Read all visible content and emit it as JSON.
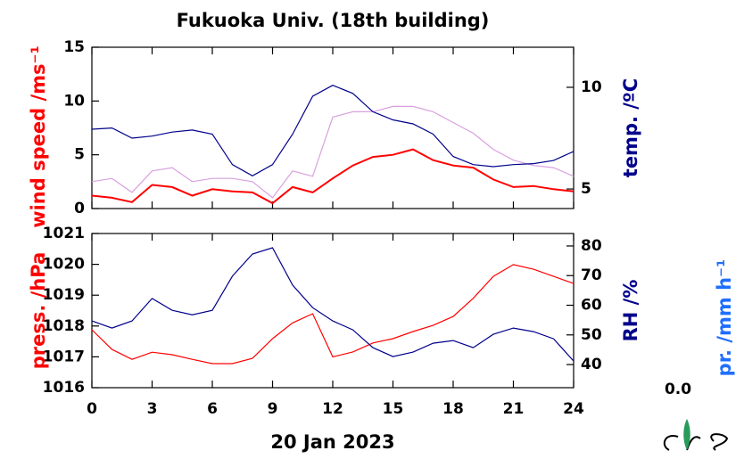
{
  "chart_data": [
    {
      "type": "line",
      "title": "Fukuoka Univ. (18th building)",
      "ylabel": "wind speed /ms⁻¹",
      "y2label": "temp. /ºC",
      "x": [
        0,
        1,
        2,
        3,
        4,
        5,
        6,
        7,
        8,
        9,
        10,
        11,
        12,
        13,
        14,
        15,
        16,
        17,
        18,
        19,
        20,
        21,
        22,
        23,
        24
      ],
      "xlim": [
        0,
        24
      ],
      "xticks": [
        0,
        3,
        6,
        9,
        12,
        15,
        18,
        21,
        24
      ],
      "ylim": [
        0,
        15
      ],
      "yticks": [
        0,
        5,
        10,
        15
      ],
      "y2lim": [
        4.04,
        11.97
      ],
      "y2ticks": [
        5,
        10
      ],
      "label_colors": {
        "y": "#ff0000",
        "y2": "#00008b"
      },
      "series": [
        {
          "color": "#d9a0e0",
          "values": [
            2.5,
            2.8,
            1.5,
            3.5,
            3.8,
            2.5,
            2.8,
            2.8,
            2.5,
            1.0,
            3.5,
            3.0,
            8.5,
            9.0,
            9.0,
            9.5,
            9.5,
            9.0,
            8.0,
            7.0,
            5.5,
            4.5,
            4.0,
            3.8,
            3.0
          ]
        },
        {
          "color": "#ff0000",
          "values": [
            1.2,
            1.0,
            0.6,
            2.2,
            2.0,
            1.2,
            1.8,
            1.6,
            1.5,
            0.5,
            2.0,
            1.5,
            2.8,
            4.0,
            4.8,
            5.0,
            5.5,
            4.5,
            4.0,
            3.8,
            2.7,
            2.0,
            2.1,
            1.8,
            1.6
          ]
        },
        {
          "color": "#00008b",
          "axis": "y2",
          "values": [
            7.94,
            8.0,
            7.5,
            7.6,
            7.8,
            7.9,
            7.7,
            6.2,
            5.65,
            6.2,
            7.7,
            9.56,
            10.1,
            9.7,
            8.8,
            8.4,
            8.2,
            7.7,
            6.6,
            6.2,
            6.1,
            6.2,
            6.25,
            6.4,
            6.85
          ]
        }
      ]
    },
    {
      "type": "line",
      "xlabel": "20 Jan 2023",
      "ylabel": "press. /hPa",
      "y2label": "RH /%",
      "y3label": "pr. /mm h⁻¹",
      "x": [
        0,
        1,
        2,
        3,
        4,
        5,
        6,
        7,
        8,
        9,
        10,
        11,
        12,
        13,
        14,
        15,
        16,
        17,
        18,
        19,
        20,
        21,
        22,
        23,
        24
      ],
      "xlim": [
        0,
        24
      ],
      "xticks": [
        0,
        3,
        6,
        9,
        12,
        15,
        18,
        21,
        24
      ],
      "ylim": [
        1016,
        1021
      ],
      "yticks": [
        1016,
        1017,
        1018,
        1019,
        1020,
        1021
      ],
      "y2lim": [
        32.2,
        84.2
      ],
      "y2ticks": [
        40,
        50,
        60,
        70,
        80
      ],
      "y3ticks": [
        {
          "value": 0,
          "label": "0.0"
        }
      ],
      "label_colors": {
        "y": "#ff0000",
        "y2": "#00008b",
        "y3": "#1e6fff"
      },
      "series": [
        {
          "color": "#ff0000",
          "values": [
            1017.88,
            1017.24,
            1016.92,
            1017.15,
            1017.07,
            1016.92,
            1016.78,
            1016.78,
            1016.95,
            1017.59,
            1018.1,
            1018.4,
            1017.0,
            1017.16,
            1017.45,
            1017.59,
            1017.82,
            1018.02,
            1018.31,
            1018.9,
            1019.61,
            1019.99,
            1019.84,
            1019.61,
            1019.38
          ]
        },
        {
          "color": "#00008b",
          "axis": "y2",
          "values": [
            54.7,
            52.3,
            54.7,
            62.3,
            58.3,
            56.8,
            58.3,
            69.8,
            77.3,
            79.4,
            66.8,
            59.2,
            54.7,
            51.7,
            45.7,
            42.7,
            44.2,
            47.2,
            48.1,
            45.7,
            50.2,
            52.3,
            51.1,
            48.7,
            41.2
          ]
        }
      ]
    }
  ]
}
